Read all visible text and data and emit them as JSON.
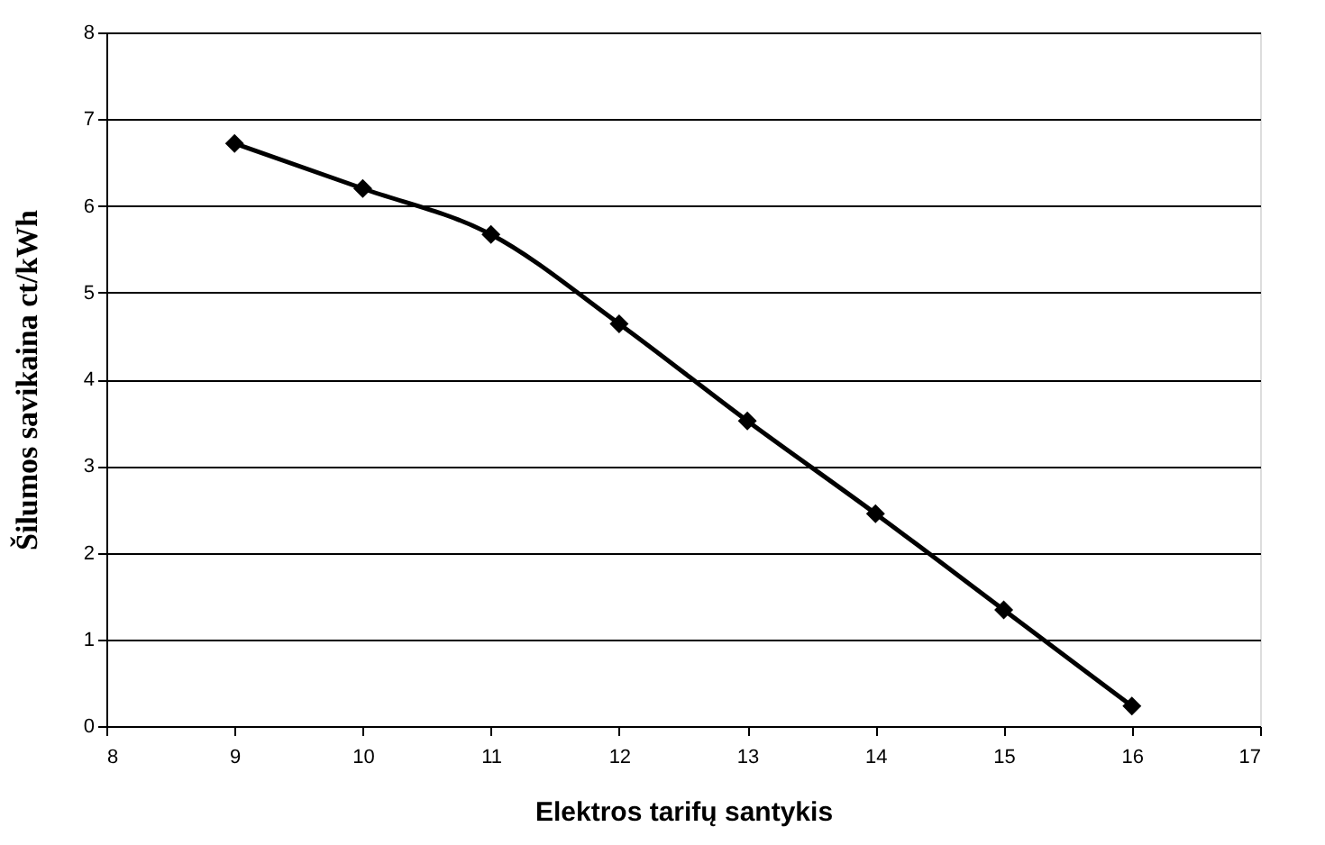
{
  "chart_data": {
    "type": "line",
    "xlabel": "Elektros tarifų santykis",
    "ylabel": "Šilumos savikaina  ct/kWh",
    "x": [
      9,
      10,
      11,
      12,
      13,
      14,
      15,
      16
    ],
    "series": [
      {
        "color": "#000000",
        "values": [
          6.72,
          6.2,
          5.67,
          4.64,
          3.52,
          2.45,
          1.34,
          0.23
        ]
      }
    ],
    "xlim": [
      8,
      17
    ],
    "xticks": [
      8,
      9,
      10,
      11,
      12,
      13,
      14,
      15,
      16,
      17
    ],
    "ylim": [
      0,
      8
    ],
    "yticks": [
      0,
      1,
      2,
      3,
      4,
      5,
      6,
      7,
      8
    ],
    "grid": "y",
    "marker": "diamond",
    "line_style": "solid",
    "legend": false
  }
}
